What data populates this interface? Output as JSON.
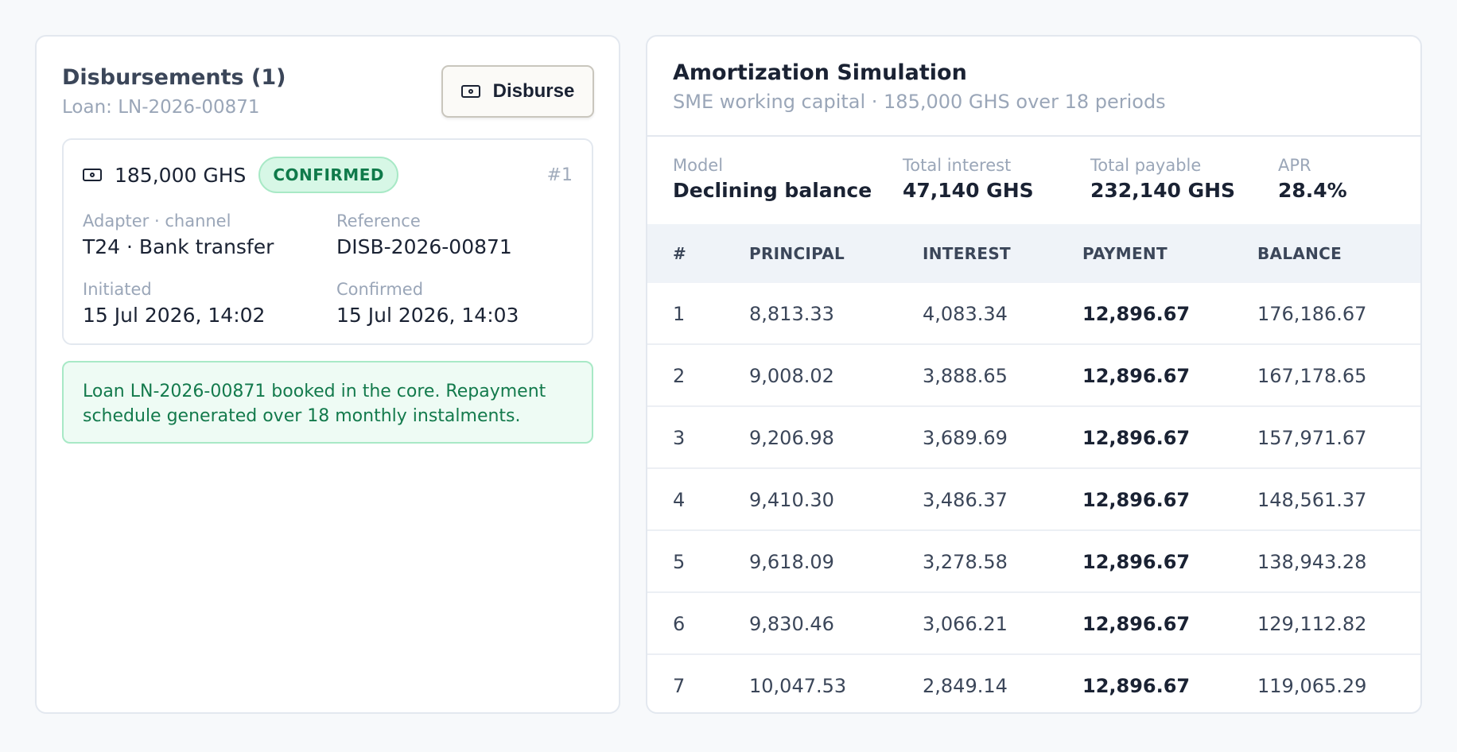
{
  "disbursements": {
    "title": "Disbursements (1)",
    "subtitle": "Loan: LN-2026-00871",
    "disburse_button": "Disburse",
    "item": {
      "amount": "185,000 GHS",
      "status": "CONFIRMED",
      "index": "#1",
      "adapter_label": "Adapter · channel",
      "adapter_value": "T24 · Bank transfer",
      "reference_label": "Reference",
      "reference_value": "DISB-2026-00871",
      "initiated_label": "Initiated",
      "initiated_value": "15 Jul 2026, 14:02",
      "confirmed_label": "Confirmed",
      "confirmed_value": "15 Jul 2026, 14:03"
    },
    "notice": "Loan LN-2026-00871 booked in the core. Repayment schedule generated over 18 monthly instalments."
  },
  "amortization": {
    "title": "Amortization Simulation",
    "subtitle": "SME working capital · 185,000 GHS over 18 periods",
    "stats": [
      {
        "label": "Model",
        "value": "Declining balance"
      },
      {
        "label": "Total interest",
        "value": "47,140 GHS"
      },
      {
        "label": "Total payable",
        "value": "232,140 GHS"
      },
      {
        "label": "APR",
        "value": "28.4%"
      }
    ],
    "columns": [
      "#",
      "PRINCIPAL",
      "INTEREST",
      "PAYMENT",
      "BALANCE"
    ],
    "rows": [
      [
        "1",
        "8,813.33",
        "4,083.34",
        "12,896.67",
        "176,186.67"
      ],
      [
        "2",
        "9,008.02",
        "3,888.65",
        "12,896.67",
        "167,178.65"
      ],
      [
        "3",
        "9,206.98",
        "3,689.69",
        "12,896.67",
        "157,971.67"
      ],
      [
        "4",
        "9,410.30",
        "3,486.37",
        "12,896.67",
        "148,561.37"
      ],
      [
        "5",
        "9,618.09",
        "3,278.58",
        "12,896.67",
        "138,943.28"
      ],
      [
        "6",
        "9,830.46",
        "3,066.21",
        "12,896.67",
        "129,112.82"
      ],
      [
        "7",
        "10,047.53",
        "2,849.14",
        "12,896.67",
        "119,065.29"
      ]
    ]
  },
  "colors": {
    "badge_bg": "#d7f7e6",
    "badge_text": "#0f7a4a",
    "notice_bg": "#eefbf4",
    "table_header_bg": "#eff3f8"
  },
  "icons": {
    "disburse_button_icon": "banknote-icon",
    "amount_icon": "banknote-icon"
  }
}
